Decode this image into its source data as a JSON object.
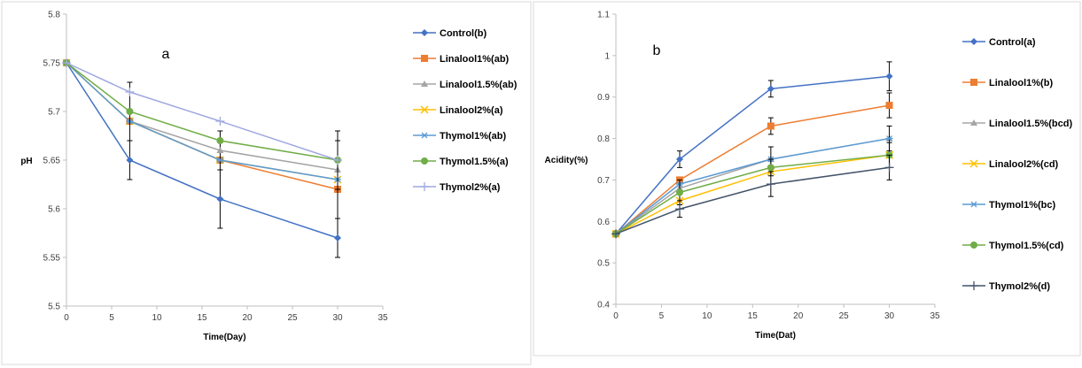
{
  "chart_data": [
    {
      "type": "line",
      "panel_label": "a",
      "xlabel": "Time(Day)",
      "ylabel": "pH",
      "xlim": [
        0,
        35
      ],
      "ylim": [
        5.5,
        5.8
      ],
      "x_ticks": [
        "0",
        "5",
        "10",
        "15",
        "20",
        "25",
        "30",
        "35"
      ],
      "y_ticks": [
        "5.5",
        "5.55",
        "5.6",
        "5.65",
        "5.7",
        "5.75",
        "5.8"
      ],
      "x": [
        0,
        7,
        17,
        30
      ],
      "legend_position": "right",
      "series": [
        {
          "name": "Control(b)",
          "color": "#4472c4",
          "marker": "diamond",
          "values": [
            5.75,
            5.65,
            5.61,
            5.57
          ],
          "err": [
            0,
            0.02,
            0.03,
            0.02
          ]
        },
        {
          "name": "Linalool1%(ab)",
          "color": "#ed7d31",
          "marker": "square",
          "values": [
            5.75,
            5.69,
            5.65,
            5.62
          ],
          "err": [
            0,
            0,
            0,
            0
          ]
        },
        {
          "name": "Linalool1.5%(ab)",
          "color": "#a5a5a5",
          "marker": "triangle",
          "values": [
            5.75,
            5.69,
            5.66,
            5.64
          ],
          "err": [
            0,
            0,
            0.02,
            0
          ]
        },
        {
          "name": "Linalool2%(a)",
          "color": "#ffc000",
          "marker": "x",
          "values": [
            5.75,
            5.69,
            5.65,
            5.63
          ],
          "err": [
            0,
            0,
            0,
            0
          ]
        },
        {
          "name": "Thymol1%(ab)",
          "color": "#5b9bd5",
          "marker": "star",
          "values": [
            5.75,
            5.69,
            5.65,
            5.63
          ],
          "err": [
            0,
            0,
            0,
            0.04
          ]
        },
        {
          "name": "Thymol1.5%(a)",
          "color": "#70ad47",
          "marker": "circle",
          "values": [
            5.75,
            5.7,
            5.67,
            5.65
          ],
          "err": [
            0,
            0.03,
            0,
            0.03
          ]
        },
        {
          "name": "Thymol2%(a)",
          "color": "#9fa8e0",
          "marker": "plus",
          "values": [
            5.75,
            5.72,
            5.69,
            5.65
          ],
          "err": [
            0,
            0,
            0,
            0
          ]
        }
      ]
    },
    {
      "type": "line",
      "panel_label": "b",
      "xlabel": "Time(Dat)",
      "ylabel": "Acidity(%)",
      "xlim": [
        0,
        35
      ],
      "ylim": [
        0.4,
        1.1
      ],
      "x_ticks": [
        "0",
        "5",
        "10",
        "15",
        "20",
        "25",
        "30",
        "35"
      ],
      "y_ticks": [
        "0.4",
        "0.5",
        "0.6",
        "0.7",
        "0.8",
        "0.9",
        "1",
        "1.1"
      ],
      "x": [
        0,
        7,
        17,
        30
      ],
      "legend_position": "right",
      "series": [
        {
          "name": "Control(a)",
          "color": "#4472c4",
          "marker": "diamond",
          "values": [
            0.57,
            0.75,
            0.92,
            0.95
          ],
          "err": [
            0,
            0.02,
            0.02,
            0.035
          ]
        },
        {
          "name": "Linalool1%(b)",
          "color": "#ed7d31",
          "marker": "square",
          "values": [
            0.57,
            0.7,
            0.83,
            0.88
          ],
          "err": [
            0,
            0,
            0.02,
            0.03
          ]
        },
        {
          "name": "Linalool1.5%(bcd)",
          "color": "#a5a5a5",
          "marker": "triangle",
          "values": [
            0.57,
            0.68,
            0.75,
            0.8
          ],
          "err": [
            0,
            0,
            0,
            0
          ]
        },
        {
          "name": "Linalool2%(cd)",
          "color": "#ffc000",
          "marker": "x",
          "values": [
            0.57,
            0.65,
            0.72,
            0.76
          ],
          "err": [
            0,
            0,
            0,
            0
          ]
        },
        {
          "name": "Thymol1%(bc)",
          "color": "#5b9bd5",
          "marker": "star",
          "values": [
            0.57,
            0.69,
            0.75,
            0.8
          ],
          "err": [
            0,
            0,
            0.03,
            0.03
          ]
        },
        {
          "name": "Thymol1.5%(cd)",
          "color": "#70ad47",
          "marker": "circle",
          "values": [
            0.57,
            0.67,
            0.73,
            0.76
          ],
          "err": [
            0,
            0.03,
            0.02,
            0.03
          ]
        },
        {
          "name": "Thymol2%(d)",
          "color": "#44546a",
          "marker": "plus",
          "values": [
            0.57,
            0.63,
            0.69,
            0.73
          ],
          "err": [
            0,
            0.02,
            0.03,
            0.03
          ]
        }
      ]
    }
  ]
}
